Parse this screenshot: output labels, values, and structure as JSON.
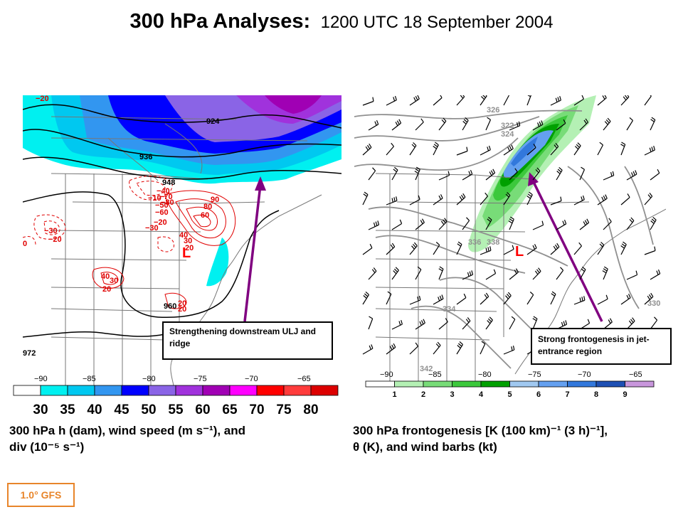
{
  "header": {
    "title": "300 hPa Analyses:",
    "datetime": "1200 UTC 18 September 2004"
  },
  "left_panel": {
    "longitudes": [
      "−90",
      "−85",
      "−80",
      "−75",
      "−70",
      "−65"
    ],
    "height_labels": [
      "924",
      "936",
      "948",
      "960",
      "972"
    ],
    "div_labels": [
      "−20",
      "−30",
      "−20",
      "−10",
      "−20",
      "−30",
      "−40",
      "−50",
      "−60",
      "−70",
      "−80",
      "90",
      "80",
      "60",
      "40",
      "30",
      "20",
      "40",
      "30",
      "20",
      "20",
      "20",
      "0"
    ],
    "low_label": "L",
    "annotation": "Strengthening downstream ULJ and ridge",
    "colorbar": {
      "colors": [
        "#ffffff",
        "#00f0f0",
        "#00c8f0",
        "#3296f0",
        "#0000ff",
        "#8a64e6",
        "#a032dc",
        "#a000b4",
        "#ff00ff",
        "#ff0000",
        "#ff3c3c",
        "#dc0000"
      ],
      "labels": [
        "30",
        "35",
        "40",
        "45",
        "50",
        "55",
        "60",
        "65",
        "70",
        "75",
        "80"
      ]
    },
    "caption_line1": "300 hPa h (dam), wind speed (m s⁻¹), and",
    "caption_line2": "div (10⁻⁵ s⁻¹)"
  },
  "right_panel": {
    "longitudes": [
      "−90",
      "−85",
      "−80",
      "−75",
      "−70",
      "−65"
    ],
    "theta_labels": [
      "326",
      "322",
      "324",
      "336",
      "338",
      "334",
      "342",
      "330"
    ],
    "low_label": "L",
    "annotation": "Strong frontogenesis in jet-entrance region",
    "colorbar": {
      "colors": [
        "#ffffff",
        "#b4f0b4",
        "#78dc78",
        "#3cc83c",
        "#00a000",
        "#a0c8f0",
        "#64a0f0",
        "#3278dc",
        "#1e50b4",
        "#c896dc"
      ],
      "labels": [
        "1",
        "2",
        "3",
        "4",
        "5",
        "6",
        "7",
        "8",
        "9"
      ]
    },
    "caption_line1": "300 hPa frontogenesis [K (100 km)⁻¹ (3 h)⁻¹],",
    "caption_line2": "θ (K), and wind barbs (kt)"
  },
  "model_label": "1.0° GFS",
  "colors": {
    "arrow": "#800080",
    "low": "#ff0000",
    "model_box": "#e8852a",
    "height_contour": "#000000",
    "div_contour": "#e00000",
    "theta_contour": "#909090"
  }
}
